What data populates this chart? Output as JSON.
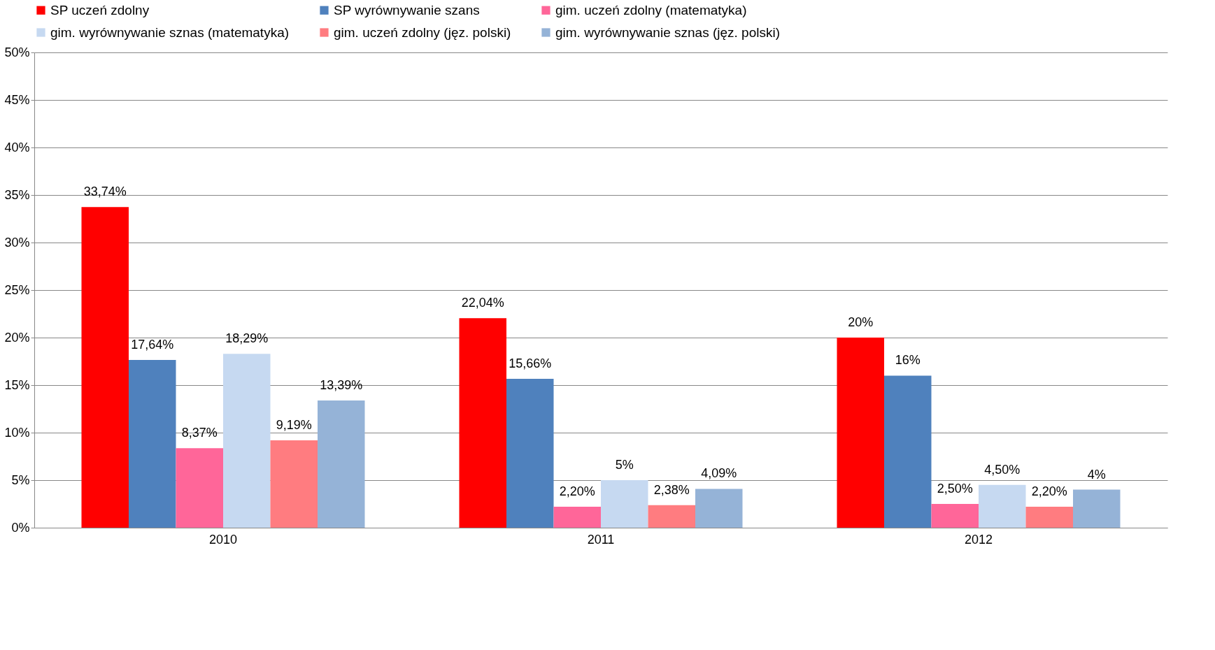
{
  "chart_data": {
    "type": "bar",
    "categories": [
      "2010",
      "2011",
      "2012"
    ],
    "series": [
      {
        "name": "SP uczeń zdolny",
        "color": "#ff0000",
        "values": [
          33.74,
          22.04,
          20
        ],
        "value_labels": [
          "33,74%",
          "22,04%",
          "20%"
        ]
      },
      {
        "name": "SP wyrównywanie szans",
        "color": "#4f81bd",
        "values": [
          17.64,
          15.66,
          16
        ],
        "value_labels": [
          "17,64%",
          "15,66%",
          "16%"
        ]
      },
      {
        "name": "gim. uczeń zdolny (matematyka)",
        "color": "#ff6699",
        "values": [
          8.37,
          2.2,
          2.5
        ],
        "value_labels": [
          "8,37%",
          "2,20%",
          "2,50%"
        ]
      },
      {
        "name": "gim. wyrównywanie sznas (matematyka)",
        "color": "#c6d9f1",
        "values": [
          18.29,
          5,
          4.5
        ],
        "value_labels": [
          "18,29%",
          "5%",
          "4,50%"
        ]
      },
      {
        "name": "gim. uczeń zdolny (jęz. polski)",
        "color": "#ff7c80",
        "values": [
          9.19,
          2.38,
          2.2
        ],
        "value_labels": [
          "9,19%",
          "2,38%",
          "2,20%"
        ]
      },
      {
        "name": "gim. wyrównywanie sznas (jęz. polski)",
        "color": "#95b3d7",
        "values": [
          13.39,
          4.09,
          4
        ],
        "value_labels": [
          "13,39%",
          "4,09%",
          "4%"
        ]
      }
    ],
    "ylim": [
      0,
      50
    ],
    "yticks": [
      {
        "value": 0,
        "label": "0%"
      },
      {
        "value": 5,
        "label": "5%"
      },
      {
        "value": 10,
        "label": "10%"
      },
      {
        "value": 15,
        "label": "15%"
      },
      {
        "value": 20,
        "label": "20%"
      },
      {
        "value": 25,
        "label": "25%"
      },
      {
        "value": 30,
        "label": "30%"
      },
      {
        "value": 35,
        "label": "35%"
      },
      {
        "value": 40,
        "label": "40%"
      },
      {
        "value": 45,
        "label": "45%"
      },
      {
        "value": 50,
        "label": "50%"
      }
    ],
    "grid": "y",
    "legend": "top"
  }
}
